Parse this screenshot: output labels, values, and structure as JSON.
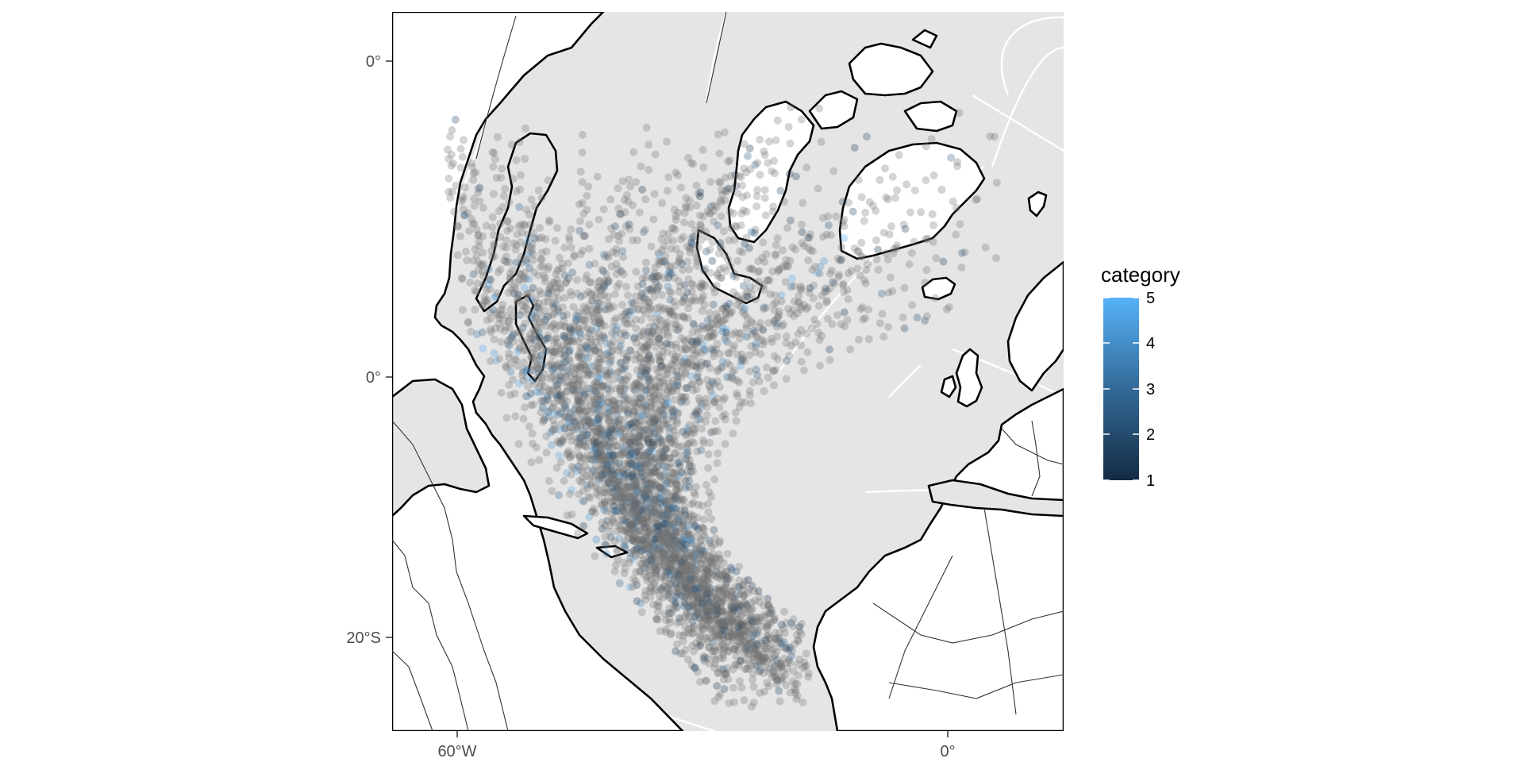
{
  "map": {
    "projection": "orthographic-like oblique view of the North Atlantic",
    "colors": {
      "panel_background": "#e5e5e5",
      "graticule": "#ffffff",
      "land": "#ffffff",
      "coastline": "#000000",
      "country_border": "#333333",
      "point_gray": "#6f6f6f"
    },
    "y_axis_labels": [
      "0°",
      "0°",
      "20°S"
    ],
    "x_axis_labels": [
      "60°W",
      "0°"
    ]
  },
  "legend": {
    "title": "category",
    "labels": [
      "5",
      "4",
      "3",
      "2",
      "1"
    ],
    "color_low": "#132b43",
    "color_high": "#56b1f7"
  },
  "chart_data": {
    "type": "scatter",
    "encoding": "hurricane track points colored by storm category",
    "color_scale": {
      "name": "category",
      "min": 1,
      "max": 5,
      "low": "#132b43",
      "high": "#56b1f7"
    },
    "point_alpha": 0.3,
    "y_ticks": [
      "0°",
      "0°",
      "20°S"
    ],
    "x_ticks": [
      "60°W",
      "0°"
    ],
    "grid": true,
    "legend_position": "right"
  }
}
